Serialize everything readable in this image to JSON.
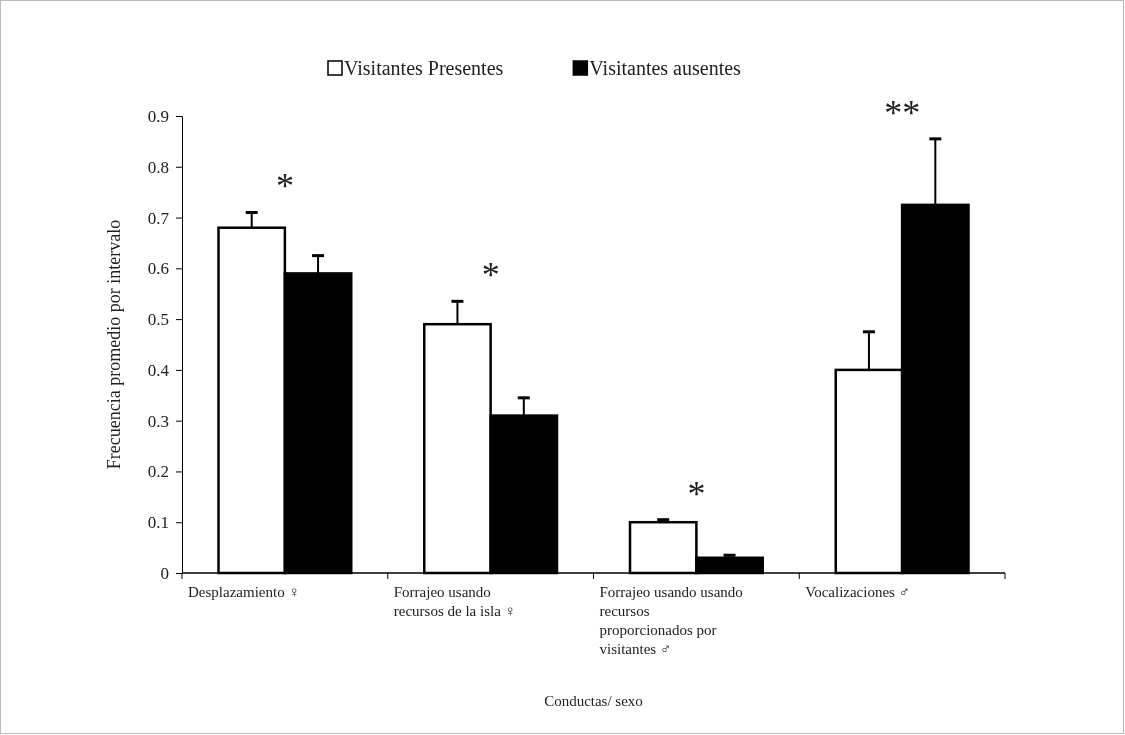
{
  "chart_data": {
    "type": "bar",
    "xlabel": "Conductas/ sexo",
    "ylabel": "Frecuencia promedio por intervalo",
    "categories": [
      "Desplazamiento ♀",
      "Forrajeo usando recursos de la isla ♀",
      "Forrajeo usando usando recursos proporcionados por visitantes ♂",
      "Vocalizaciones ♂"
    ],
    "series": [
      {
        "name": "Visitantes Presentes",
        "color": "#ffffff",
        "values": [
          0.68,
          0.49,
          0.1,
          0.4
        ],
        "errors": [
          [
            0.68,
            0.71
          ],
          [
            0.49,
            0.535
          ],
          [
            0.1,
            0.105
          ],
          [
            0.4,
            0.475
          ]
        ]
      },
      {
        "name": "Visitantes ausentes",
        "color": "#000000",
        "values": [
          0.59,
          0.31,
          0.03,
          0.725
        ],
        "errors": [
          [
            0.59,
            0.625
          ],
          [
            0.31,
            0.345
          ],
          [
            0.03,
            0.035
          ],
          [
            0.725,
            0.855
          ]
        ]
      }
    ],
    "ylim": [
      0,
      0.9
    ],
    "yticks": [
      0,
      0.1,
      0.2,
      0.3,
      0.4,
      0.5,
      0.6,
      0.7,
      0.8,
      0.9
    ],
    "legend": "top",
    "annotations": [
      "*",
      "*",
      "*",
      "**"
    ]
  }
}
